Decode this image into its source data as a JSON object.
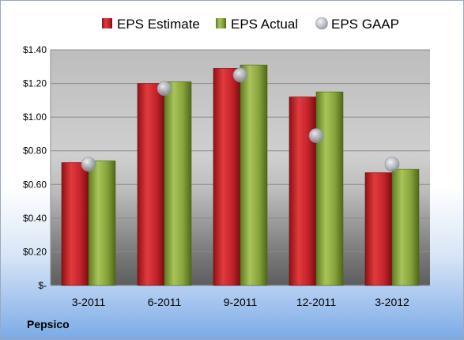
{
  "company_label": "Pepsico",
  "chart_data": {
    "type": "bar",
    "categories": [
      "3-2011",
      "6-2011",
      "9-2011",
      "12-2011",
      "3-2012"
    ],
    "series": [
      {
        "name": "EPS Estimate",
        "kind": "bar",
        "color": "#c0282d",
        "values": [
          0.73,
          1.2,
          1.29,
          1.12,
          0.67
        ]
      },
      {
        "name": "EPS Actual",
        "kind": "bar",
        "color": "#8caa3c",
        "values": [
          0.74,
          1.21,
          1.31,
          1.15,
          0.69
        ]
      },
      {
        "name": "EPS GAAP",
        "kind": "marker",
        "color": "#b4b9c3",
        "values": [
          0.72,
          1.17,
          1.25,
          0.89,
          0.72
        ]
      }
    ],
    "ylim": [
      0,
      1.4
    ],
    "yticks": [
      0,
      0.2,
      0.4,
      0.6,
      0.8,
      1.0,
      1.2,
      1.4
    ],
    "ytick_labels": [
      "$-",
      "$0.20",
      "$0.40",
      "$0.60",
      "$0.80",
      "$1.00",
      "$1.20",
      "$1.40"
    ],
    "legend_position": "top",
    "grid": true
  }
}
